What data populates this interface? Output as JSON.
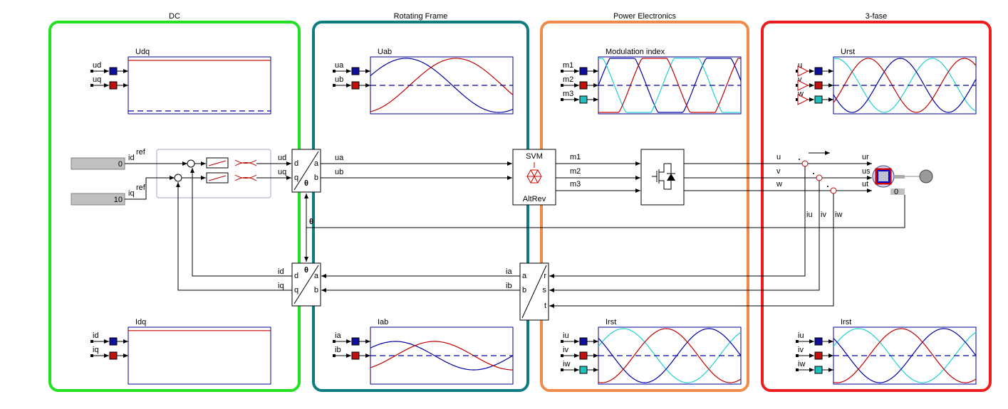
{
  "panels": [
    {
      "title": "DC"
    },
    {
      "title": "Rotating Frame"
    },
    {
      "title": "Power Electronics"
    },
    {
      "title": "3-fase"
    }
  ],
  "scopes": [
    {
      "title": "Udq",
      "inputs": [
        "ud",
        "uq"
      ]
    },
    {
      "title": "Uab",
      "inputs": [
        "ua",
        "ub"
      ]
    },
    {
      "title": "Modulation index",
      "inputs": [
        "m1",
        "m2",
        "m3"
      ]
    },
    {
      "title": "Urst",
      "inputs": [
        "u",
        "v",
        "w"
      ]
    },
    {
      "title": "Idq",
      "inputs": [
        "id",
        "iq"
      ]
    },
    {
      "title": "Iab",
      "inputs": [
        "ia",
        "ib"
      ]
    },
    {
      "title": "Irst",
      "inputs": [
        "iu",
        "iv",
        "iw"
      ]
    },
    {
      "title": "Irst",
      "inputs": [
        "iu",
        "iv",
        "iw"
      ]
    }
  ],
  "references": [
    {
      "value": 0,
      "label": "id",
      "superscript": "ref"
    },
    {
      "value": 10,
      "label": "iq",
      "superscript": "ref"
    }
  ],
  "dq_to_ab": {
    "inputs": [
      "d",
      "q"
    ],
    "outputs": [
      "a",
      "b"
    ],
    "angle": "θ"
  },
  "ab_to_dq": {
    "inputs": [
      "d",
      "q"
    ],
    "outputs": [
      "a",
      "b"
    ],
    "angle": "θ"
  },
  "rst_to_ab": {
    "inputs": [
      "a",
      "b"
    ],
    "outputs": [
      "r",
      "s",
      "t"
    ]
  },
  "svm": {
    "top": "SVM",
    "bottom": "AltRev"
  },
  "signals": {
    "voltage_dq": [
      "ud",
      "uq"
    ],
    "voltage_ab": [
      "ua",
      "ub"
    ],
    "modulation": [
      "m1",
      "m2",
      "m3"
    ],
    "phases": [
      "u",
      "v",
      "w"
    ],
    "machine": [
      "ur",
      "us",
      "ut"
    ],
    "measured": [
      "iu",
      "iv",
      "iw"
    ],
    "angle": "θ",
    "current_dq": [
      "id",
      "iq"
    ],
    "current_ab": [
      "ia",
      "ib"
    ]
  },
  "machine_port": 0
}
